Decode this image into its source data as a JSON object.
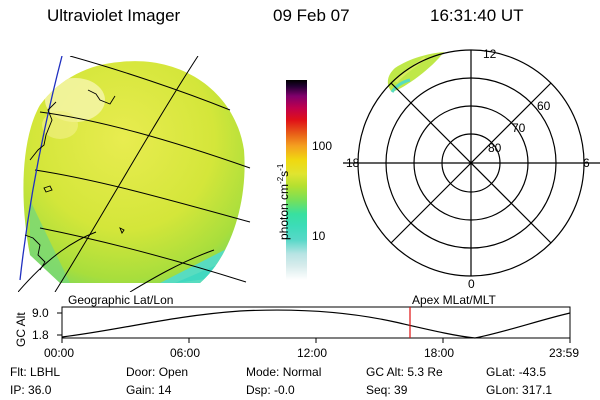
{
  "header": {
    "instrument": "Ultraviolet Imager",
    "date": "09 Feb 07",
    "time": "16:31:40 UT"
  },
  "colorbar": {
    "label": "photon cm",
    "sup1": "-2",
    "mid": "s",
    "sup2": "-1",
    "tick_100": "100",
    "tick_10": "10",
    "colors": [
      "#ffffff",
      "#d8ecec",
      "#b8e4e4",
      "#58d8c8",
      "#3cdcb8",
      "#38e0a0",
      "#78e058",
      "#b4e030",
      "#e0e430",
      "#f0d810",
      "#f4a020",
      "#e86018",
      "#e01018",
      "#c0004c",
      "#80006c",
      "#200030",
      "#000000"
    ]
  },
  "polar_plot": {
    "label_12": "12",
    "label_6": "6",
    "label_18": "18",
    "label_0": "0",
    "lat_60": "60",
    "lat_70": "70",
    "lat_80": "80"
  },
  "map_labels": {
    "left": "Geographic Lat/Lon",
    "right": "Apex MLat/MLT"
  },
  "altitude_plot": {
    "axis_label": "GC Alt",
    "tick_top": "9.0",
    "tick_bottom": "1.8",
    "x_ticks": [
      "00:00",
      "06:00",
      "12:00",
      "18:00",
      "23:59"
    ]
  },
  "footer": {
    "row1": [
      {
        "key": "Flt:",
        "value": "LBHL"
      },
      {
        "key": "Door:",
        "value": "Open"
      },
      {
        "key": "Mode:",
        "value": "Normal"
      },
      {
        "key": "GC Alt:",
        "value": "5.3 Re"
      },
      {
        "key": "GLat:",
        "value": "-43.5"
      }
    ],
    "row2": [
      {
        "key": "IP:",
        "value": "36.0"
      },
      {
        "key": "Gain:",
        "value": "14"
      },
      {
        "key": "Dsp:",
        "value": "-0.0"
      },
      {
        "key": "Seq:",
        "value": "39"
      },
      {
        "key": "GLon:",
        "value": "317.1"
      }
    ]
  }
}
